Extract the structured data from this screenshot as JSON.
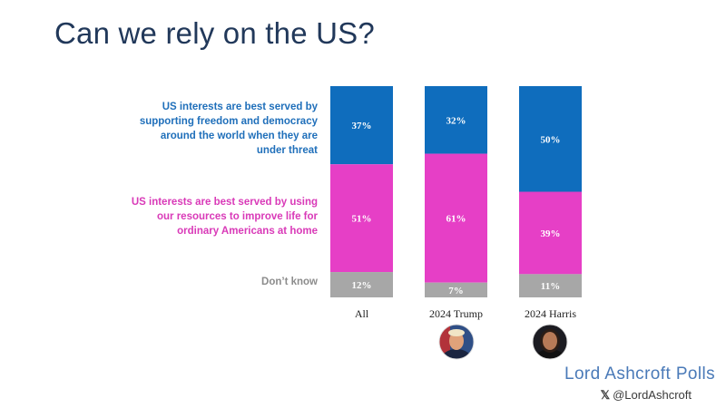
{
  "title": "Can we rely on the US?",
  "legend": [
    {
      "label": "US interests are best served by supporting freedom and democracy around the world when they are under threat",
      "color": "#0f6dbd"
    },
    {
      "label": "US interests are best served by using our resources to improve life for ordinary Americans at home",
      "color": "#e63fc6"
    },
    {
      "label": "Don’t know",
      "color": "#a7a7a7"
    }
  ],
  "chart_data": {
    "type": "bar",
    "stacked": true,
    "categories": [
      "All",
      "2024 Trump",
      "2024 Harris"
    ],
    "series": [
      {
        "name": "US interests are best served by supporting freedom and democracy around the world when they are under threat",
        "values": [
          37,
          32,
          50
        ],
        "labels": [
          "37%",
          "32%",
          "50%"
        ],
        "color": "#0f6dbd"
      },
      {
        "name": "US interests are best served by using our resources to improve life for ordinary Americans at home",
        "values": [
          51,
          61,
          39
        ],
        "labels": [
          "51%",
          "61%",
          "39%"
        ],
        "color": "#e63fc6"
      },
      {
        "name": "Don’t know",
        "values": [
          12,
          7,
          11
        ],
        "labels": [
          "12%",
          "7%",
          "11%"
        ],
        "color": "#a7a7a7"
      }
    ],
    "ylim": [
      0,
      100
    ],
    "title": "Can we rely on the US?",
    "xlabel": "",
    "ylabel": ""
  },
  "avatars": [
    {
      "category": "2024 Trump",
      "icon": "trump-portrait-icon"
    },
    {
      "category": "2024 Harris",
      "icon": "harris-portrait-icon"
    }
  ],
  "brand": {
    "name": "Lord Ashcroft Polls",
    "handle": "@LordAshcroft",
    "handle_icon": "x-logo-icon"
  }
}
